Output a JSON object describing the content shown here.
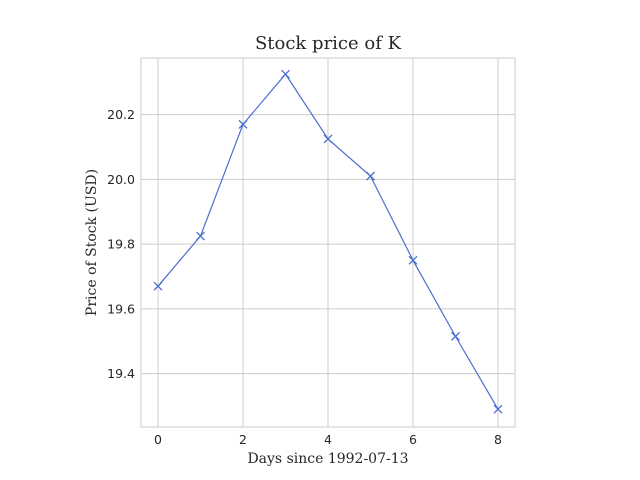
{
  "chart_data": {
    "type": "line",
    "title": "Stock price of K",
    "xlabel": "Days since 1992-07-13",
    "ylabel": "Price of Stock (USD)",
    "x": [
      0,
      1,
      2,
      3,
      4,
      5,
      6,
      7,
      8
    ],
    "series": [
      {
        "values": [
          19.67,
          19.825,
          20.17,
          20.325,
          20.125,
          20.01,
          19.75,
          19.515,
          19.29
        ],
        "color": "#4a6fcf",
        "marker": "x"
      }
    ],
    "xlim": [
      -0.4,
      8.4
    ],
    "ylim": [
      19.235,
      20.375
    ],
    "xticks": [
      0,
      2,
      4,
      6,
      8
    ],
    "yticks": [
      19.4,
      19.6,
      19.8,
      20.0,
      20.2
    ],
    "xtick_labels": [
      "0",
      "2",
      "4",
      "6",
      "8"
    ],
    "ytick_labels": [
      "19.4",
      "19.6",
      "19.8",
      "20.0",
      "20.2"
    ],
    "grid": true
  }
}
